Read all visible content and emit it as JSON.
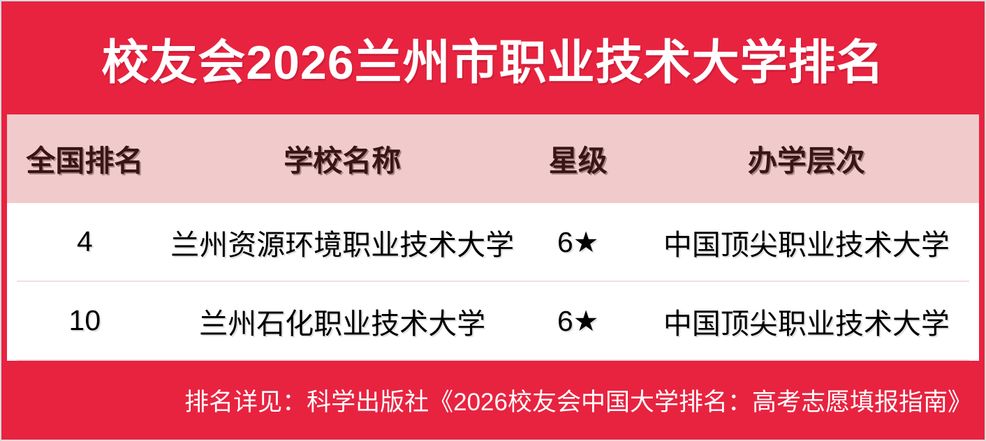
{
  "chart_data": {
    "type": "table",
    "title": "校友会2026兰州市职业技术大学排名",
    "columns": [
      "全国排名",
      "学校名称",
      "星级",
      "办学层次"
    ],
    "rows": [
      [
        "4",
        "兰州资源环境职业技术大学",
        "6★",
        "中国顶尖职业技术大学"
      ],
      [
        "10",
        "兰州石化职业技术大学",
        "6★",
        "中国顶尖职业技术大学"
      ]
    ],
    "footnote": "排名详见：科学出版社《2026校友会中国大学排名：高考志愿填报指南》"
  },
  "colors": {
    "background_red": "#E82340",
    "header_pink": "#F1CBCB",
    "header_text_maroon": "#3B1414",
    "row_text_black": "#000000",
    "title_text_white": "#FFFFFF",
    "divider_pink": "#F6DCE0",
    "outer_border_gray": "#D9D9D9"
  }
}
